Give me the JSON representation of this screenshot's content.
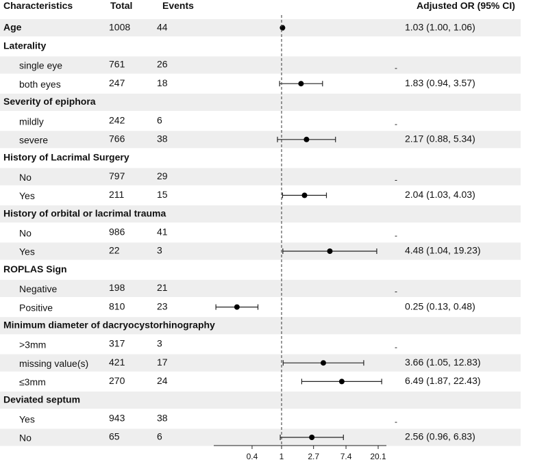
{
  "header": {
    "characteristics": "Characteristics",
    "total": "Total",
    "events": "Events",
    "or": "Adjusted OR (95% CI)"
  },
  "chart_data": {
    "type": "forest",
    "title": "",
    "xscale": "log",
    "xlim": [
      0.15,
      21
    ],
    "reference_line": 1,
    "x_ticks": [
      "0.4",
      "1",
      "2.7",
      "7.4",
      "20.1"
    ],
    "x_tick_values": [
      0.4,
      1,
      2.7,
      7.4,
      20.1
    ],
    "rows": [
      {
        "label": "Age",
        "bold": true,
        "shaded": true,
        "total": "1008",
        "events": "44",
        "or": 1.03,
        "lo": 1.0,
        "hi": 1.06,
        "ci_text": "1.03 (1.00, 1.06)"
      },
      {
        "label": "Laterality",
        "bold": true,
        "shaded": false
      },
      {
        "label": "single eye",
        "bold": false,
        "shaded": true,
        "total": "761",
        "events": "26",
        "ci_text": "-"
      },
      {
        "label": "both eyes",
        "bold": false,
        "shaded": false,
        "total": "247",
        "events": "18",
        "or": 1.83,
        "lo": 0.94,
        "hi": 3.57,
        "ci_text": "1.83 (0.94, 3.57)"
      },
      {
        "label": "Severity of epiphora",
        "bold": true,
        "shaded": true
      },
      {
        "label": "mildly",
        "bold": false,
        "shaded": false,
        "total": "242",
        "events": "6",
        "ci_text": "-"
      },
      {
        "label": "severe",
        "bold": false,
        "shaded": true,
        "total": "766",
        "events": "38",
        "or": 2.17,
        "lo": 0.88,
        "hi": 5.34,
        "ci_text": "2.17 (0.88, 5.34)"
      },
      {
        "label": "History of Lacrimal Surgery",
        "bold": true,
        "shaded": false
      },
      {
        "label": "No",
        "bold": false,
        "shaded": true,
        "total": "797",
        "events": "29",
        "ci_text": "-"
      },
      {
        "label": "Yes",
        "bold": false,
        "shaded": false,
        "total": "211",
        "events": "15",
        "or": 2.04,
        "lo": 1.03,
        "hi": 4.03,
        "ci_text": "2.04 (1.03, 4.03)"
      },
      {
        "label": "History of orbital or lacrimal trauma",
        "bold": true,
        "shaded": true
      },
      {
        "label": "No",
        "bold": false,
        "shaded": false,
        "total": "986",
        "events": "41",
        "ci_text": "-"
      },
      {
        "label": "Yes",
        "bold": false,
        "shaded": true,
        "total": "22",
        "events": "3",
        "or": 4.48,
        "lo": 1.04,
        "hi": 19.23,
        "ci_text": "4.48 (1.04, 19.23)"
      },
      {
        "label": "ROPLAS Sign",
        "bold": true,
        "shaded": false
      },
      {
        "label": "Negative",
        "bold": false,
        "shaded": true,
        "total": "198",
        "events": "21",
        "ci_text": "-"
      },
      {
        "label": "Positive",
        "bold": false,
        "shaded": false,
        "total": "810",
        "events": "23",
        "or": 0.25,
        "lo": 0.13,
        "hi": 0.48,
        "ci_text": "0.25 (0.13, 0.48)"
      },
      {
        "label": "Minimum diameter of dacryocystorhinography",
        "bold": true,
        "shaded": true
      },
      {
        "label": ">3mm",
        "bold": false,
        "shaded": false,
        "total": "317",
        "events": "3",
        "ci_text": "-"
      },
      {
        "label": "missing value(s)",
        "bold": false,
        "shaded": true,
        "total": "421",
        "events": "17",
        "or": 3.66,
        "lo": 1.05,
        "hi": 12.83,
        "ci_text": "3.66 (1.05, 12.83)"
      },
      {
        "label": "≤3mm",
        "bold": false,
        "shaded": false,
        "total": "270",
        "events": "24",
        "or": 6.49,
        "lo": 1.87,
        "hi": 22.43,
        "ci_text": "6.49 (1.87, 22.43)"
      },
      {
        "label": "Deviated septum",
        "bold": true,
        "shaded": true
      },
      {
        "label": "Yes",
        "bold": false,
        "shaded": false,
        "total": "943",
        "events": "38",
        "ci_text": "-"
      },
      {
        "label": "No",
        "bold": false,
        "shaded": true,
        "total": "65",
        "events": "6",
        "or": 2.56,
        "lo": 0.96,
        "hi": 6.83,
        "ci_text": "2.56 (0.96, 6.83)"
      }
    ]
  }
}
